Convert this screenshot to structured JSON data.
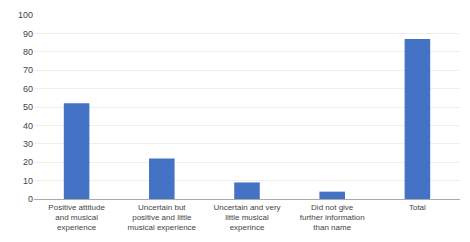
{
  "chart_data": {
    "type": "bar",
    "categories": [
      "Positive attitude\nand musical\nexperience",
      "Uncertain but\npositive and little\nmusical experience",
      "Uncertain and very\nlittle musical\nexperince",
      "Did not give\nfurther information\nthan name",
      "Total"
    ],
    "values": [
      52,
      22,
      9,
      4,
      87
    ],
    "color": "#4472c4",
    "ylim": [
      0,
      100
    ],
    "yticks": [
      0,
      10,
      20,
      30,
      40,
      50,
      60,
      70,
      80,
      90,
      100
    ],
    "grid": true
  }
}
